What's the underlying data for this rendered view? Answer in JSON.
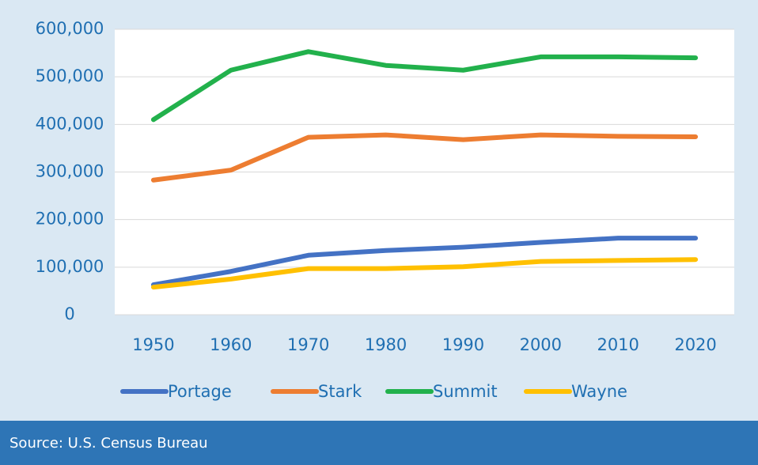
{
  "chart_data": {
    "type": "line",
    "source": "Source: U.S. Census Bureau",
    "categories": [
      "1950",
      "1960",
      "1970",
      "1980",
      "1990",
      "2000",
      "2010",
      "2020"
    ],
    "series": [
      {
        "name": "Portage",
        "color": "#4472c4",
        "values": [
          63000,
          91000,
          125000,
          135000,
          142000,
          152000,
          161000,
          161000
        ]
      },
      {
        "name": "Stark",
        "color": "#ed7d31",
        "values": [
          283000,
          304000,
          373000,
          378000,
          368000,
          378000,
          375000,
          374000
        ]
      },
      {
        "name": "Summit",
        "color": "#22b14c",
        "values": [
          410000,
          514000,
          553000,
          524000,
          514000,
          542000,
          542000,
          540000
        ]
      },
      {
        "name": "Wayne",
        "color": "#ffc000",
        "values": [
          58000,
          75000,
          97000,
          97000,
          101000,
          112000,
          114000,
          116000
        ]
      }
    ],
    "ylim": [
      0,
      600000
    ],
    "yticks": [
      0,
      {
        "value": 100000,
        "label": "100,000"
      },
      {
        "value": 200000,
        "label": "200,000"
      },
      {
        "value": 300000,
        "label": "300,000"
      },
      {
        "value": 400000,
        "label": "400,000"
      },
      {
        "value": 500000,
        "label": "500,000"
      },
      {
        "value": 600000,
        "label": "600,000"
      }
    ],
    "grid": true,
    "legend": "bottom"
  }
}
